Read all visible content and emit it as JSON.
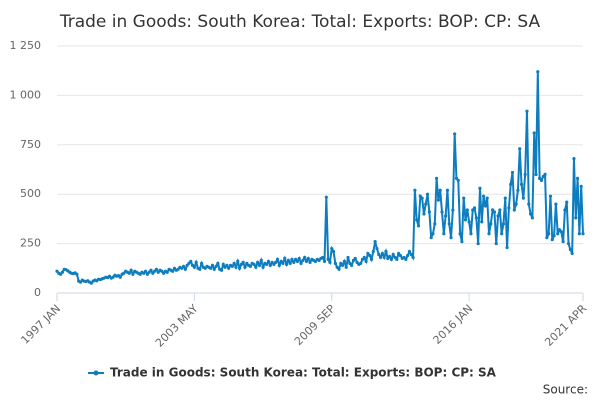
{
  "chart_data": {
    "type": "line",
    "title": "Trade in Goods: South Korea: Total: Exports: BOP: CP: SA",
    "source_label": "Source:",
    "categories": [
      "1997 JAN",
      null,
      null,
      null,
      null,
      null,
      null,
      null,
      null,
      null,
      null,
      null,
      null,
      null,
      null,
      null,
      null,
      null,
      null,
      null,
      null,
      null,
      null,
      null,
      null,
      null,
      null,
      null,
      null,
      null,
      null,
      null,
      null,
      null,
      null,
      null,
      null,
      null,
      null,
      null,
      null,
      null,
      null,
      null,
      null,
      null,
      null,
      null,
      null,
      null,
      null,
      null,
      null,
      null,
      null,
      null,
      null,
      null,
      null,
      null,
      null,
      null,
      null,
      null,
      null,
      null,
      null,
      null,
      null,
      null,
      null,
      null,
      null,
      null,
      null,
      null,
      "2003 MAY",
      null,
      null,
      null,
      null,
      null,
      null,
      null,
      null,
      null,
      null,
      null,
      null,
      null,
      null,
      null,
      null,
      null,
      null,
      null,
      null,
      null,
      null,
      null,
      null,
      null,
      null,
      null,
      null,
      null,
      null,
      null,
      null,
      null,
      null,
      null,
      null,
      null,
      null,
      null,
      null,
      null,
      null,
      null,
      null,
      null,
      null,
      null,
      null,
      null,
      null,
      null,
      null,
      null,
      null,
      null,
      null,
      null,
      null,
      null,
      null,
      null,
      null,
      null,
      null,
      null,
      null,
      null,
      null,
      null,
      null,
      null,
      null,
      null,
      null,
      null,
      "2009 SEP",
      null,
      null,
      null,
      null,
      null,
      null,
      null,
      null,
      null,
      null,
      null,
      null,
      null,
      null,
      null,
      null,
      null,
      null,
      null,
      null,
      null,
      null,
      null,
      null,
      null,
      null,
      null,
      null,
      null,
      null,
      null,
      null,
      null,
      null,
      null,
      null,
      null,
      null,
      null,
      null,
      null,
      null,
      null,
      null,
      null,
      null,
      null,
      null,
      null,
      null,
      null,
      null,
      null,
      null,
      null,
      null,
      null,
      null,
      null,
      null,
      null,
      null,
      null,
      null,
      null,
      null,
      null,
      null,
      null,
      null,
      null,
      null,
      null,
      null,
      null,
      "2016 JAN",
      null,
      null,
      null,
      null,
      null,
      null,
      null,
      null,
      null,
      null,
      null,
      null,
      null,
      null,
      null,
      null,
      null,
      null,
      null,
      null,
      null,
      null,
      null,
      null,
      null,
      null,
      null,
      null,
      null,
      null,
      null,
      null,
      null,
      null,
      null,
      null,
      null,
      null,
      null,
      null,
      null,
      null,
      null,
      null,
      null,
      null,
      null,
      null,
      null,
      null,
      null,
      null,
      null,
      null,
      null,
      null,
      null,
      null,
      null,
      null,
      null,
      null,
      "2021 APR"
    ],
    "series": [
      {
        "name": "Trade in Goods: South Korea: Total: Exports: BOP: CP: SA",
        "color": "#0d7dbf",
        "values": [
          110,
          100,
          95,
          105,
          120,
          118,
          112,
          105,
          100,
          98,
          102,
          95,
          60,
          55,
          65,
          60,
          58,
          62,
          55,
          50,
          60,
          65,
          62,
          70,
          68,
          72,
          75,
          80,
          78,
          85,
          75,
          80,
          90,
          85,
          88,
          80,
          95,
          100,
          110,
          105,
          100,
          115,
          95,
          110,
          105,
          100,
          95,
          105,
          100,
          110,
          95,
          105,
          115,
          100,
          110,
          120,
          105,
          115,
          110,
          100,
          110,
          105,
          120,
          115,
          110,
          125,
          115,
          120,
          130,
          125,
          135,
          120,
          140,
          150,
          160,
          140,
          130,
          155,
          125,
          120,
          150,
          130,
          125,
          135,
          130,
          125,
          140,
          120,
          135,
          150,
          120,
          115,
          145,
          130,
          140,
          125,
          140,
          135,
          150,
          130,
          160,
          125,
          145,
          155,
          130,
          150,
          140,
          135,
          150,
          145,
          130,
          155,
          140,
          165,
          130,
          150,
          145,
          160,
          140,
          155,
          145,
          155,
          170,
          140,
          160,
          150,
          175,
          145,
          165,
          150,
          170,
          155,
          170,
          160,
          175,
          150,
          165,
          180,
          160,
          175,
          155,
          170,
          165,
          160,
          170,
          165,
          175,
          180,
          160,
          485,
          170,
          155,
          225,
          210,
          150,
          130,
          120,
          150,
          140,
          160,
          130,
          180,
          150,
          140,
          165,
          175,
          155,
          145,
          150,
          170,
          180,
          160,
          200,
          190,
          170,
          210,
          260,
          225,
          195,
          180,
          200,
          180,
          210,
          175,
          185,
          170,
          195,
          180,
          170,
          200,
          190,
          175,
          180,
          170,
          190,
          210,
          195,
          180,
          520,
          370,
          340,
          490,
          480,
          400,
          450,
          500,
          410,
          280,
          300,
          350,
          580,
          470,
          520,
          410,
          300,
          390,
          520,
          350,
          280,
          420,
          805,
          580,
          570,
          300,
          260,
          480,
          370,
          420,
          360,
          300,
          420,
          430,
          380,
          250,
          530,
          360,
          490,
          440,
          480,
          300,
          350,
          420,
          410,
          250,
          390,
          420,
          300,
          350,
          480,
          230,
          430,
          550,
          610,
          420,
          450,
          520,
          730,
          550,
          480,
          600,
          920,
          450,
          400,
          380,
          810,
          600,
          1120,
          580,
          570,
          590,
          600,
          280,
          300,
          490,
          270,
          290,
          450,
          300,
          320,
          310,
          260,
          420,
          460,
          250,
          220,
          200,
          680,
          380,
          580,
          300,
          540,
          300
        ]
      }
    ],
    "ylim": [
      0,
      1250
    ],
    "yticks": [
      0,
      250,
      500,
      750,
      {
        "value": 1000,
        "label": "1 000"
      },
      {
        "value": 1250,
        "label": "1 250"
      }
    ],
    "grid": true
  }
}
